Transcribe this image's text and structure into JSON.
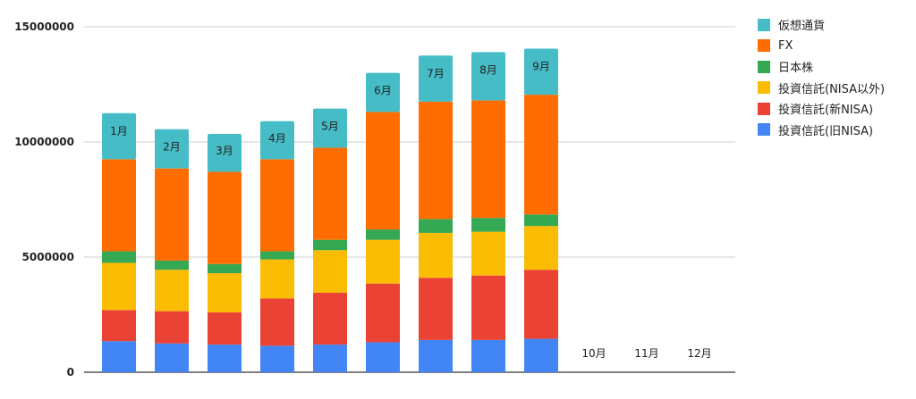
{
  "chart_data": {
    "type": "bar",
    "stacked": true,
    "title": "",
    "xlabel": "",
    "ylabel": "",
    "ylim": [
      0,
      15000000
    ],
    "yticks": [
      "0",
      "5000000",
      "10000000",
      "15000000"
    ],
    "legend_position": "right",
    "categories": [
      "1月",
      "2月",
      "3月",
      "4月",
      "5月",
      "6月",
      "7月",
      "8月",
      "9月",
      "10月",
      "11月",
      "12月"
    ],
    "series": [
      {
        "name": "投資信託(旧NISA)",
        "color": "#4285F4",
        "values": [
          1350000,
          1250000,
          1200000,
          1150000,
          1200000,
          1300000,
          1400000,
          1400000,
          1450000,
          null,
          null,
          null
        ]
      },
      {
        "name": "投資信託(新NISA)",
        "color": "#EA4335",
        "values": [
          1350000,
          1400000,
          1400000,
          2050000,
          2250000,
          2550000,
          2700000,
          2800000,
          3000000,
          null,
          null,
          null
        ]
      },
      {
        "name": "投資信託(NISA以外)",
        "color": "#FBBC04",
        "values": [
          2050000,
          1800000,
          1700000,
          1700000,
          1850000,
          1900000,
          1950000,
          1900000,
          1900000,
          null,
          null,
          null
        ]
      },
      {
        "name": "日本株",
        "color": "#34A853",
        "values": [
          500000,
          400000,
          400000,
          350000,
          450000,
          450000,
          600000,
          600000,
          500000,
          null,
          null,
          null
        ]
      },
      {
        "name": "FX",
        "color": "#FF6D01",
        "values": [
          4000000,
          4000000,
          4000000,
          4000000,
          4000000,
          5100000,
          5100000,
          5100000,
          5200000,
          null,
          null,
          null
        ]
      },
      {
        "name": "仮想通貨",
        "color": "#46BDC6",
        "values": [
          2000000,
          1700000,
          1650000,
          1650000,
          1700000,
          1700000,
          2000000,
          2100000,
          2000000,
          null,
          null,
          null
        ]
      }
    ]
  }
}
